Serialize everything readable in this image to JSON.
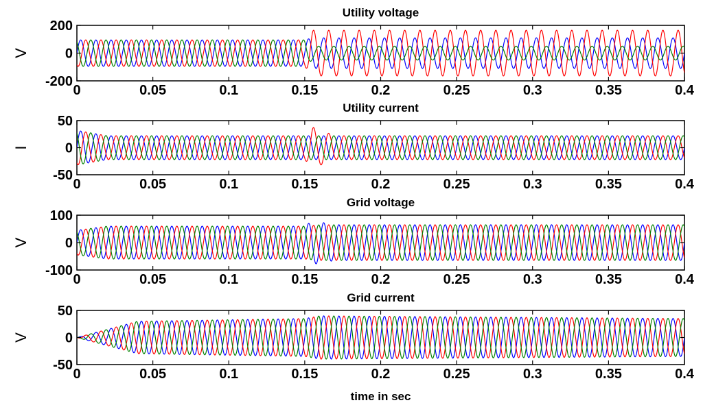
{
  "chart_data": [
    {
      "type": "line",
      "title": "Utility voltage",
      "ylabel": "V",
      "xlim": [
        0,
        0.4
      ],
      "ylim": [
        -200,
        200
      ],
      "xticks": [
        "0",
        "0.05",
        "0.1",
        "0.15",
        "0.2",
        "0.25",
        "0.3",
        "0.35",
        "0.4"
      ],
      "yticks": [
        "200",
        "0",
        "-200"
      ],
      "xtick_values": [
        0,
        0.05,
        0.1,
        0.15,
        0.2,
        0.25,
        0.3,
        0.35,
        0.4
      ],
      "ytick_values": [
        200,
        0,
        -200
      ],
      "frequency_hz": 100,
      "series": [
        {
          "color": "#0000ff",
          "phase_deg": 0,
          "amplitude": [
            {
              "t": 0,
              "a": 95
            },
            {
              "t": 0.15,
              "a": 95
            },
            {
              "t": 0.155,
              "a": 110
            },
            {
              "t": 0.4,
              "a": 110
            }
          ]
        },
        {
          "color": "#ff0000",
          "phase_deg": -120,
          "amplitude": [
            {
              "t": 0,
              "a": 95
            },
            {
              "t": 0.15,
              "a": 95
            },
            {
              "t": 0.155,
              "a": 165
            },
            {
              "t": 0.4,
              "a": 165
            }
          ]
        },
        {
          "color": "#008000",
          "phase_deg": 120,
          "amplitude": [
            {
              "t": 0,
              "a": 95
            },
            {
              "t": 0.15,
              "a": 95
            },
            {
              "t": 0.155,
              "a": 50
            },
            {
              "t": 0.4,
              "a": 50
            }
          ]
        }
      ]
    },
    {
      "type": "line",
      "title": "Utility current",
      "ylabel": "I",
      "xlim": [
        0,
        0.4
      ],
      "ylim": [
        -50,
        50
      ],
      "xticks": [
        "0",
        "0.05",
        "0.1",
        "0.15",
        "0.2",
        "0.25",
        "0.3",
        "0.35",
        "0.4"
      ],
      "yticks": [
        "50",
        "0",
        "-50"
      ],
      "xtick_values": [
        0,
        0.05,
        0.1,
        0.15,
        0.2,
        0.25,
        0.3,
        0.35,
        0.4
      ],
      "ytick_values": [
        50,
        0,
        -50
      ],
      "frequency_hz": 100,
      "series": [
        {
          "color": "#0000ff",
          "phase_deg": 0,
          "amplitude": [
            {
              "t": 0,
              "a": 32
            },
            {
              "t": 0.02,
              "a": 22
            },
            {
              "t": 0.4,
              "a": 22
            }
          ]
        },
        {
          "color": "#ff0000",
          "phase_deg": -120,
          "amplitude": [
            {
              "t": 0,
              "a": 32
            },
            {
              "t": 0.02,
              "a": 22
            },
            {
              "t": 0.15,
              "a": 22
            },
            {
              "t": 0.155,
              "a": 38
            },
            {
              "t": 0.17,
              "a": 22
            },
            {
              "t": 0.4,
              "a": 22
            }
          ]
        },
        {
          "color": "#008000",
          "phase_deg": 120,
          "amplitude": [
            {
              "t": 0,
              "a": 32
            },
            {
              "t": 0.02,
              "a": 22
            },
            {
              "t": 0.4,
              "a": 22
            }
          ]
        }
      ]
    },
    {
      "type": "line",
      "title": "Grid voltage",
      "ylabel": "V",
      "xlim": [
        0,
        0.4
      ],
      "ylim": [
        -100,
        100
      ],
      "xticks": [
        "0",
        "0.05",
        "0.1",
        "0.15",
        "0.2",
        "0.25",
        "0.3",
        "0.35",
        "0.4"
      ],
      "yticks": [
        "100",
        "0",
        "-100"
      ],
      "xtick_values": [
        0,
        0.05,
        0.1,
        0.15,
        0.2,
        0.25,
        0.3,
        0.35,
        0.4
      ],
      "ytick_values": [
        100,
        0,
        -100
      ],
      "frequency_hz": 100,
      "series": [
        {
          "color": "#0000ff",
          "phase_deg": 0,
          "amplitude": [
            {
              "t": 0,
              "a": 45
            },
            {
              "t": 0.02,
              "a": 60
            },
            {
              "t": 0.15,
              "a": 60
            },
            {
              "t": 0.155,
              "a": 80
            },
            {
              "t": 0.17,
              "a": 65
            },
            {
              "t": 0.4,
              "a": 65
            }
          ]
        },
        {
          "color": "#ff0000",
          "phase_deg": -120,
          "amplitude": [
            {
              "t": 0,
              "a": 45
            },
            {
              "t": 0.02,
              "a": 60
            },
            {
              "t": 0.15,
              "a": 60
            },
            {
              "t": 0.16,
              "a": 65
            },
            {
              "t": 0.4,
              "a": 65
            }
          ]
        },
        {
          "color": "#008000",
          "phase_deg": 120,
          "amplitude": [
            {
              "t": 0,
              "a": 45
            },
            {
              "t": 0.02,
              "a": 60
            },
            {
              "t": 0.15,
              "a": 60
            },
            {
              "t": 0.16,
              "a": 65
            },
            {
              "t": 0.4,
              "a": 65
            }
          ]
        }
      ]
    },
    {
      "type": "line",
      "title": "Grid current",
      "ylabel": "V",
      "xlabel": "time in sec",
      "xlim": [
        0,
        0.4
      ],
      "ylim": [
        -50,
        50
      ],
      "xticks": [
        "0",
        "0.05",
        "0.1",
        "0.15",
        "0.2",
        "0.25",
        "0.3",
        "0.35",
        "0.4"
      ],
      "yticks": [
        "50",
        "0",
        "-50"
      ],
      "xtick_values": [
        0,
        0.05,
        0.1,
        0.15,
        0.2,
        0.25,
        0.3,
        0.35,
        0.4
      ],
      "ytick_values": [
        50,
        0,
        -50
      ],
      "frequency_hz": 100,
      "series": [
        {
          "color": "#0000ff",
          "phase_deg": 0,
          "amplitude": [
            {
              "t": 0,
              "a": 0
            },
            {
              "t": 0.04,
              "a": 30
            },
            {
              "t": 0.15,
              "a": 35
            },
            {
              "t": 0.16,
              "a": 40
            },
            {
              "t": 0.4,
              "a": 35
            }
          ]
        },
        {
          "color": "#ff0000",
          "phase_deg": -120,
          "amplitude": [
            {
              "t": 0,
              "a": 0
            },
            {
              "t": 0.04,
              "a": 30
            },
            {
              "t": 0.15,
              "a": 35
            },
            {
              "t": 0.16,
              "a": 40
            },
            {
              "t": 0.4,
              "a": 35
            }
          ]
        },
        {
          "color": "#008000",
          "phase_deg": 120,
          "amplitude": [
            {
              "t": 0,
              "a": 0
            },
            {
              "t": 0.04,
              "a": 30
            },
            {
              "t": 0.15,
              "a": 35
            },
            {
              "t": 0.16,
              "a": 40
            },
            {
              "t": 0.4,
              "a": 35
            }
          ]
        }
      ]
    }
  ]
}
